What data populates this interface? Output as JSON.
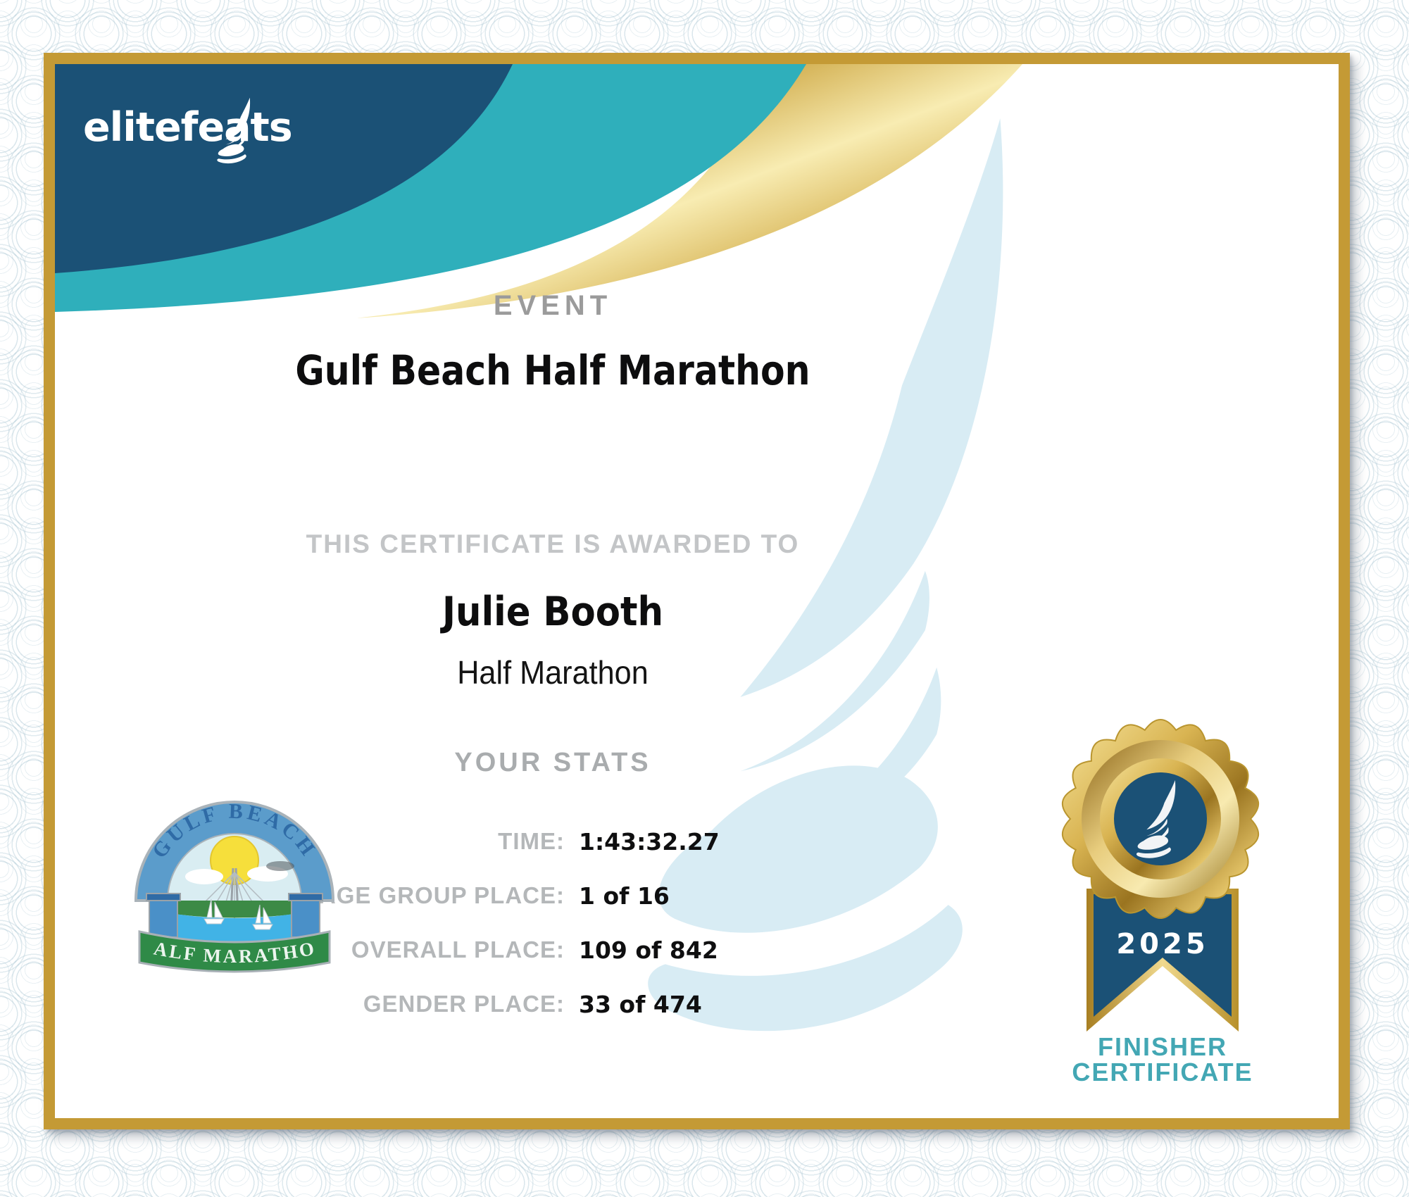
{
  "brand": {
    "name": "elitefeats",
    "icon": "winged-foot-icon"
  },
  "header": {
    "event_label": "EVENT",
    "event_name": "Gulf Beach Half Marathon"
  },
  "award": {
    "intro": "THIS CERTIFICATE IS AWARDED TO",
    "recipient": "Julie Booth",
    "division": "Half Marathon"
  },
  "stats": {
    "heading": "YOUR STATS",
    "rows": [
      {
        "label": "TIME:",
        "value": "1:43:32.27"
      },
      {
        "label": "AGE GROUP PLACE:",
        "value": "1 of 16"
      },
      {
        "label": "OVERALL PLACE:",
        "value": "109 of 842"
      },
      {
        "label": "GENDER PLACE:",
        "value": "33 of 474"
      }
    ]
  },
  "event_medal": {
    "arch_text": "GULF BEACH",
    "banner_text": "HALF MARATHON"
  },
  "badge": {
    "year": "2025",
    "caption_line1": "FINISHER",
    "caption_line2": "CERTIFICATE"
  },
  "colors": {
    "navy": "#1b5176",
    "teal": "#2fafbb",
    "frame_gold": "#c49a35",
    "badge_teal": "#43a7b4",
    "watermark_blue": "#d8ecf4"
  }
}
